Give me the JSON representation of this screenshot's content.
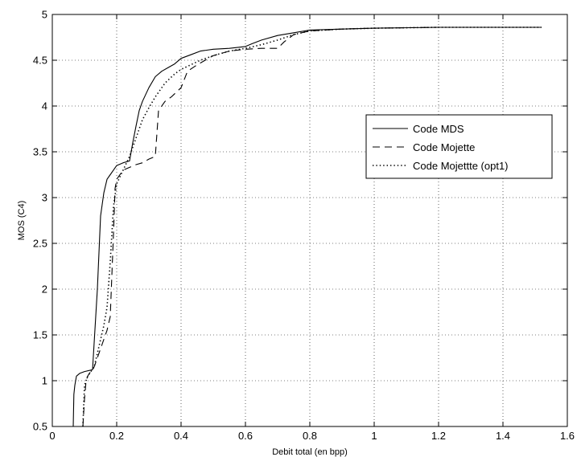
{
  "chart_data": {
    "type": "line",
    "title": "",
    "xlabel": "Debit total (en bpp)",
    "ylabel": "MOS (C4)",
    "xlim": [
      0,
      1.6
    ],
    "ylim": [
      0.5,
      5
    ],
    "x_ticks": [
      0,
      0.2,
      0.4,
      0.6,
      0.8,
      1,
      1.2,
      1.4,
      1.6
    ],
    "x_tick_labels": [
      "0",
      "0.2",
      "0.4",
      "0.6",
      "0.8",
      "1",
      "1.2",
      "1.4",
      "1.6"
    ],
    "y_ticks": [
      0.5,
      1,
      1.5,
      2,
      2.5,
      3,
      3.5,
      4,
      4.5,
      5
    ],
    "y_tick_labels": [
      "0.5",
      "1",
      "1.5",
      "2",
      "2.5",
      "3",
      "3.5",
      "4",
      "4.5",
      "5"
    ],
    "grid": true,
    "legend_position": "right",
    "series": [
      {
        "name": "Code MDS",
        "style": "solid",
        "color": "#000000",
        "x": [
          0.065,
          0.067,
          0.07,
          0.075,
          0.085,
          0.1,
          0.125,
          0.14,
          0.15,
          0.16,
          0.17,
          0.18,
          0.19,
          0.2,
          0.22,
          0.24,
          0.25,
          0.26,
          0.27,
          0.28,
          0.3,
          0.32,
          0.34,
          0.36,
          0.38,
          0.4,
          0.43,
          0.46,
          0.5,
          0.55,
          0.6,
          0.62,
          0.65,
          0.7,
          0.75,
          0.8,
          0.9,
          1.0,
          1.2,
          1.4,
          1.52
        ],
        "y": [
          0.5,
          0.85,
          0.95,
          1.05,
          1.08,
          1.1,
          1.12,
          2.0,
          2.8,
          3.05,
          3.2,
          3.25,
          3.3,
          3.35,
          3.38,
          3.4,
          3.6,
          3.78,
          3.95,
          4.05,
          4.2,
          4.32,
          4.38,
          4.42,
          4.46,
          4.52,
          4.56,
          4.6,
          4.62,
          4.63,
          4.65,
          4.68,
          4.72,
          4.77,
          4.8,
          4.83,
          4.84,
          4.85,
          4.86,
          4.86,
          4.86
        ]
      },
      {
        "name": "Code Mojette",
        "style": "dashed",
        "color": "#000000",
        "x": [
          0.095,
          0.1,
          0.105,
          0.11,
          0.115,
          0.12,
          0.125,
          0.13,
          0.14,
          0.15,
          0.16,
          0.17,
          0.18,
          0.19,
          0.195,
          0.2,
          0.22,
          0.24,
          0.26,
          0.28,
          0.3,
          0.32,
          0.33,
          0.35,
          0.37,
          0.4,
          0.42,
          0.45,
          0.5,
          0.55,
          0.6,
          0.65,
          0.7,
          0.72,
          0.75,
          0.8,
          0.9,
          1.0,
          1.2,
          1.4,
          1.52
        ],
        "y": [
          0.5,
          0.8,
          1.0,
          1.05,
          1.08,
          1.1,
          1.12,
          1.15,
          1.25,
          1.35,
          1.45,
          1.55,
          1.7,
          2.6,
          3.1,
          3.2,
          3.3,
          3.33,
          3.36,
          3.38,
          3.42,
          3.45,
          3.95,
          4.05,
          4.1,
          4.2,
          4.38,
          4.45,
          4.55,
          4.6,
          4.62,
          4.63,
          4.63,
          4.7,
          4.78,
          4.82,
          4.84,
          4.85,
          4.86,
          4.86,
          4.86
        ]
      },
      {
        "name": "Code Mojettte (opt1)",
        "style": "dotted",
        "color": "#000000",
        "x": [
          0.095,
          0.1,
          0.11,
          0.12,
          0.13,
          0.14,
          0.15,
          0.16,
          0.17,
          0.18,
          0.19,
          0.2,
          0.22,
          0.24,
          0.26,
          0.28,
          0.3,
          0.32,
          0.35,
          0.38,
          0.4,
          0.43,
          0.46,
          0.5,
          0.55,
          0.6,
          0.65,
          0.7,
          0.75,
          0.8,
          0.9,
          1.0,
          1.2,
          1.4,
          1.52
        ],
        "y": [
          0.5,
          0.95,
          1.05,
          1.1,
          1.15,
          1.3,
          1.45,
          1.6,
          1.8,
          2.3,
          2.9,
          3.15,
          3.3,
          3.45,
          3.65,
          3.85,
          3.98,
          4.1,
          4.25,
          4.35,
          4.4,
          4.45,
          4.5,
          4.55,
          4.6,
          4.63,
          4.67,
          4.72,
          4.78,
          4.82,
          4.84,
          4.85,
          4.86,
          4.86,
          4.86
        ]
      }
    ]
  }
}
